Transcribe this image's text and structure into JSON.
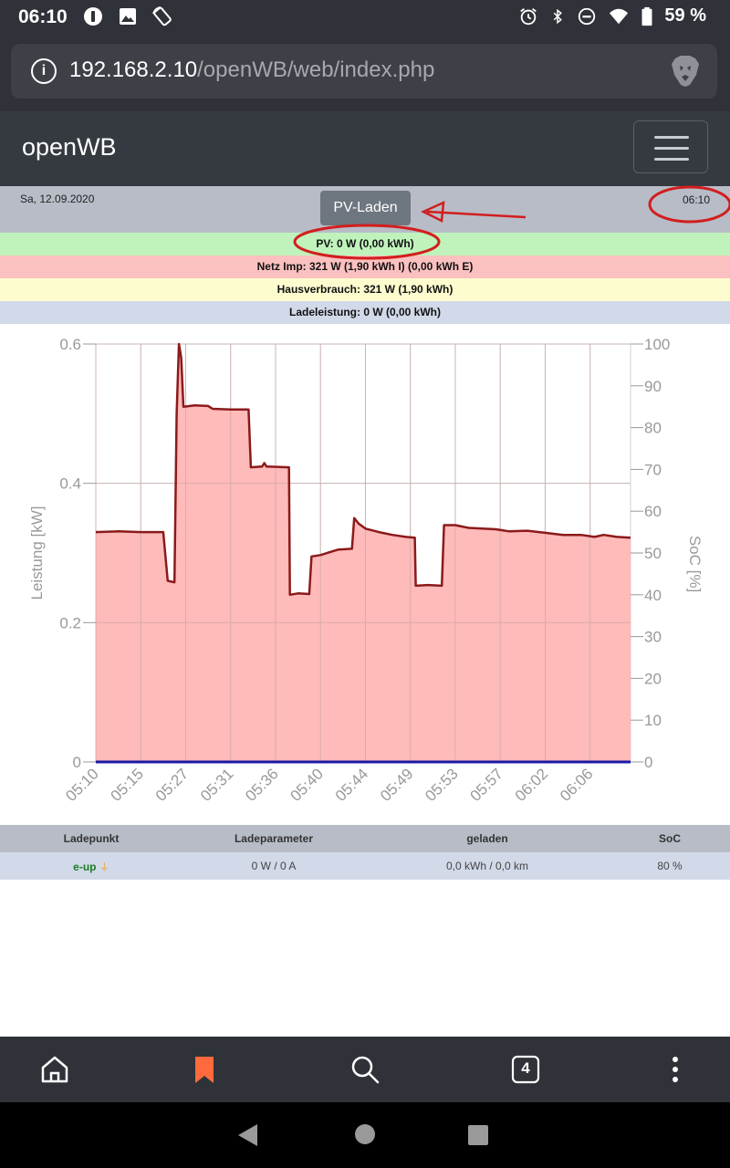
{
  "status_bar": {
    "time": "06:10",
    "battery": "59 %",
    "icons_left": [
      "data-saver-icon",
      "image-icon",
      "phone-rotate-icon"
    ],
    "icons_right": [
      "alarm-icon",
      "bluetooth-icon",
      "do-not-disturb-icon",
      "wifi-icon",
      "battery-icon"
    ]
  },
  "browser": {
    "url_host": "192.168.2.10",
    "url_path": "/openWB/web/index.php",
    "info_icon_label": "i"
  },
  "navbar": {
    "brand": "openWB"
  },
  "header": {
    "date": "Sa, 12.09.2020",
    "mode_button": "PV-Laden",
    "time": "06:10"
  },
  "info_rows": {
    "pv": "PV: 0 W (0,00 kWh)",
    "netz": "Netz Imp: 321 W (1,90 kWh I) (0,00 kWh E)",
    "haus": "Hausverbrauch: 321 W (1,90 kWh)",
    "lade": "Ladeleistung: 0 W (0,00 kWh)"
  },
  "chart_data": {
    "type": "area",
    "ylabel": "Leistung [kW]",
    "y2label": "SoC [%]",
    "ylim": [
      0,
      0.6
    ],
    "y2lim": [
      0,
      100
    ],
    "y_ticks": [
      "0",
      "0.2",
      "0.4",
      "0.6"
    ],
    "y2_ticks": [
      "0",
      "10",
      "20",
      "30",
      "40",
      "50",
      "60",
      "70",
      "80",
      "90",
      "100"
    ],
    "x_ticks": [
      "05:10",
      "05:15",
      "05:27",
      "05:31",
      "05:36",
      "05:40",
      "05:44",
      "05:49",
      "05:53",
      "05:57",
      "06:02",
      "06:06"
    ],
    "series": [
      {
        "color": "#8b1a1a",
        "fill": "#ffb3b3",
        "points": [
          [
            0,
            0.33
          ],
          [
            0.5,
            0.331
          ],
          [
            1,
            0.33
          ],
          [
            1.5,
            0.33
          ],
          [
            1.6,
            0.26
          ],
          [
            1.75,
            0.258
          ],
          [
            1.8,
            0.5
          ],
          [
            1.85,
            0.6
          ],
          [
            1.9,
            0.58
          ],
          [
            1.95,
            0.51
          ],
          [
            2.2,
            0.512
          ],
          [
            2.5,
            0.511
          ],
          [
            2.6,
            0.507
          ],
          [
            3,
            0.506
          ],
          [
            3.4,
            0.506
          ],
          [
            3.45,
            0.423
          ],
          [
            3.7,
            0.424
          ],
          [
            3.75,
            0.429
          ],
          [
            3.8,
            0.424
          ],
          [
            4.3,
            0.423
          ],
          [
            4.32,
            0.24
          ],
          [
            4.5,
            0.242
          ],
          [
            4.75,
            0.241
          ],
          [
            4.8,
            0.295
          ],
          [
            5,
            0.297
          ],
          [
            5.2,
            0.301
          ],
          [
            5.4,
            0.305
          ],
          [
            5.7,
            0.306
          ],
          [
            5.75,
            0.35
          ],
          [
            5.85,
            0.342
          ],
          [
            6,
            0.335
          ],
          [
            6.3,
            0.33
          ],
          [
            6.6,
            0.326
          ],
          [
            6.9,
            0.323
          ],
          [
            7.1,
            0.322
          ],
          [
            7.12,
            0.253
          ],
          [
            7.4,
            0.254
          ],
          [
            7.7,
            0.253
          ],
          [
            7.75,
            0.34
          ],
          [
            8,
            0.34
          ],
          [
            8.3,
            0.336
          ],
          [
            8.6,
            0.335
          ],
          [
            8.9,
            0.334
          ],
          [
            9.2,
            0.331
          ],
          [
            9.6,
            0.332
          ],
          [
            10,
            0.329
          ],
          [
            10.4,
            0.326
          ],
          [
            10.8,
            0.326
          ],
          [
            11.1,
            0.323
          ],
          [
            11.3,
            0.326
          ],
          [
            11.6,
            0.323
          ],
          [
            11.9,
            0.322
          ]
        ]
      },
      {
        "color": "#1a1aa8",
        "points": [
          [
            0,
            0
          ],
          [
            11.9,
            0
          ]
        ]
      }
    ]
  },
  "table": {
    "headers": [
      "Ladepunkt",
      "Ladeparameter",
      "geladen",
      "SoC"
    ],
    "rows": [
      {
        "name": "e-up",
        "plug_icon": "plug-icon",
        "param": "0 W / 0 A",
        "charged": "0,0 kWh / 0,0 km",
        "soc": "80 %"
      }
    ]
  },
  "bottom_bar": {
    "tabs_count": "4",
    "accent": "#ff6a3d"
  }
}
